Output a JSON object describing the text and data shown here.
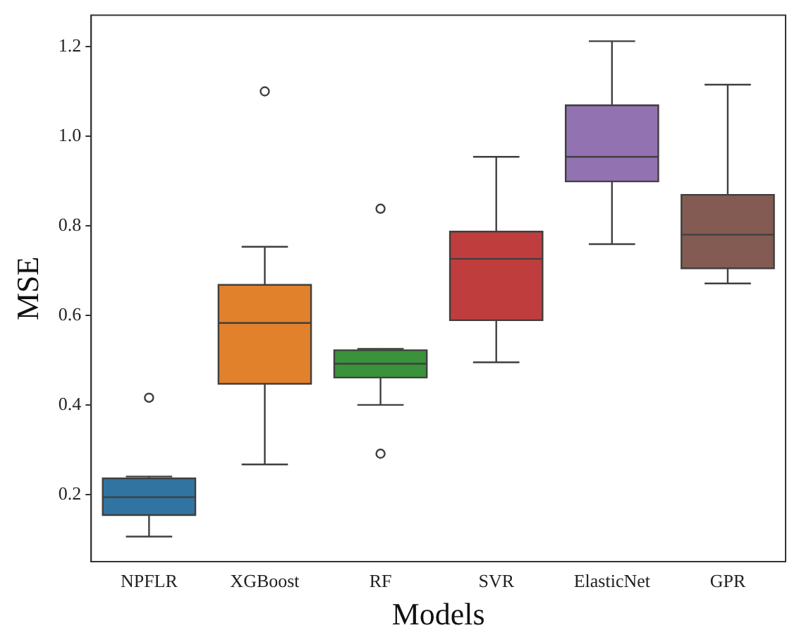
{
  "chart_data": {
    "type": "box",
    "xlabel": "Models",
    "ylabel": "MSE",
    "categories": [
      "NPFLR",
      "XGBoost",
      "RF",
      "SVR",
      "ElasticNet",
      "GPR"
    ],
    "colors": [
      "#3274a1",
      "#e1812c",
      "#3a923a",
      "#c03d3e",
      "#9372b2",
      "#845b53"
    ],
    "boxes": [
      {
        "low": 0.106,
        "q1": 0.154,
        "median": 0.194,
        "q3": 0.236,
        "high": 0.24,
        "outliers": [
          0.416
        ]
      },
      {
        "low": 0.267,
        "q1": 0.447,
        "median": 0.583,
        "q3": 0.668,
        "high": 0.753,
        "outliers": [
          1.1
        ]
      },
      {
        "low": 0.4,
        "q1": 0.461,
        "median": 0.492,
        "q3": 0.522,
        "high": 0.525,
        "outliers": [
          0.838,
          0.291
        ]
      },
      {
        "low": 0.495,
        "q1": 0.589,
        "median": 0.726,
        "q3": 0.787,
        "high": 0.954
      },
      {
        "low": 0.759,
        "q1": 0.899,
        "median": 0.954,
        "q3": 1.069,
        "high": 1.212
      },
      {
        "low": 0.671,
        "q1": 0.705,
        "median": 0.78,
        "q3": 0.869,
        "high": 1.115
      }
    ],
    "ylim": [
      0.05,
      1.27
    ],
    "yticks": [
      {
        "value": 0.2,
        "label": "0.2"
      },
      {
        "value": 0.4,
        "label": "0.4"
      },
      {
        "value": 0.6,
        "label": "0.6"
      },
      {
        "value": 0.8,
        "label": "0.8"
      },
      {
        "value": 1.0,
        "label": "1.0"
      },
      {
        "value": 1.2,
        "label": "1.2"
      }
    ],
    "grid": false,
    "legend": false
  }
}
